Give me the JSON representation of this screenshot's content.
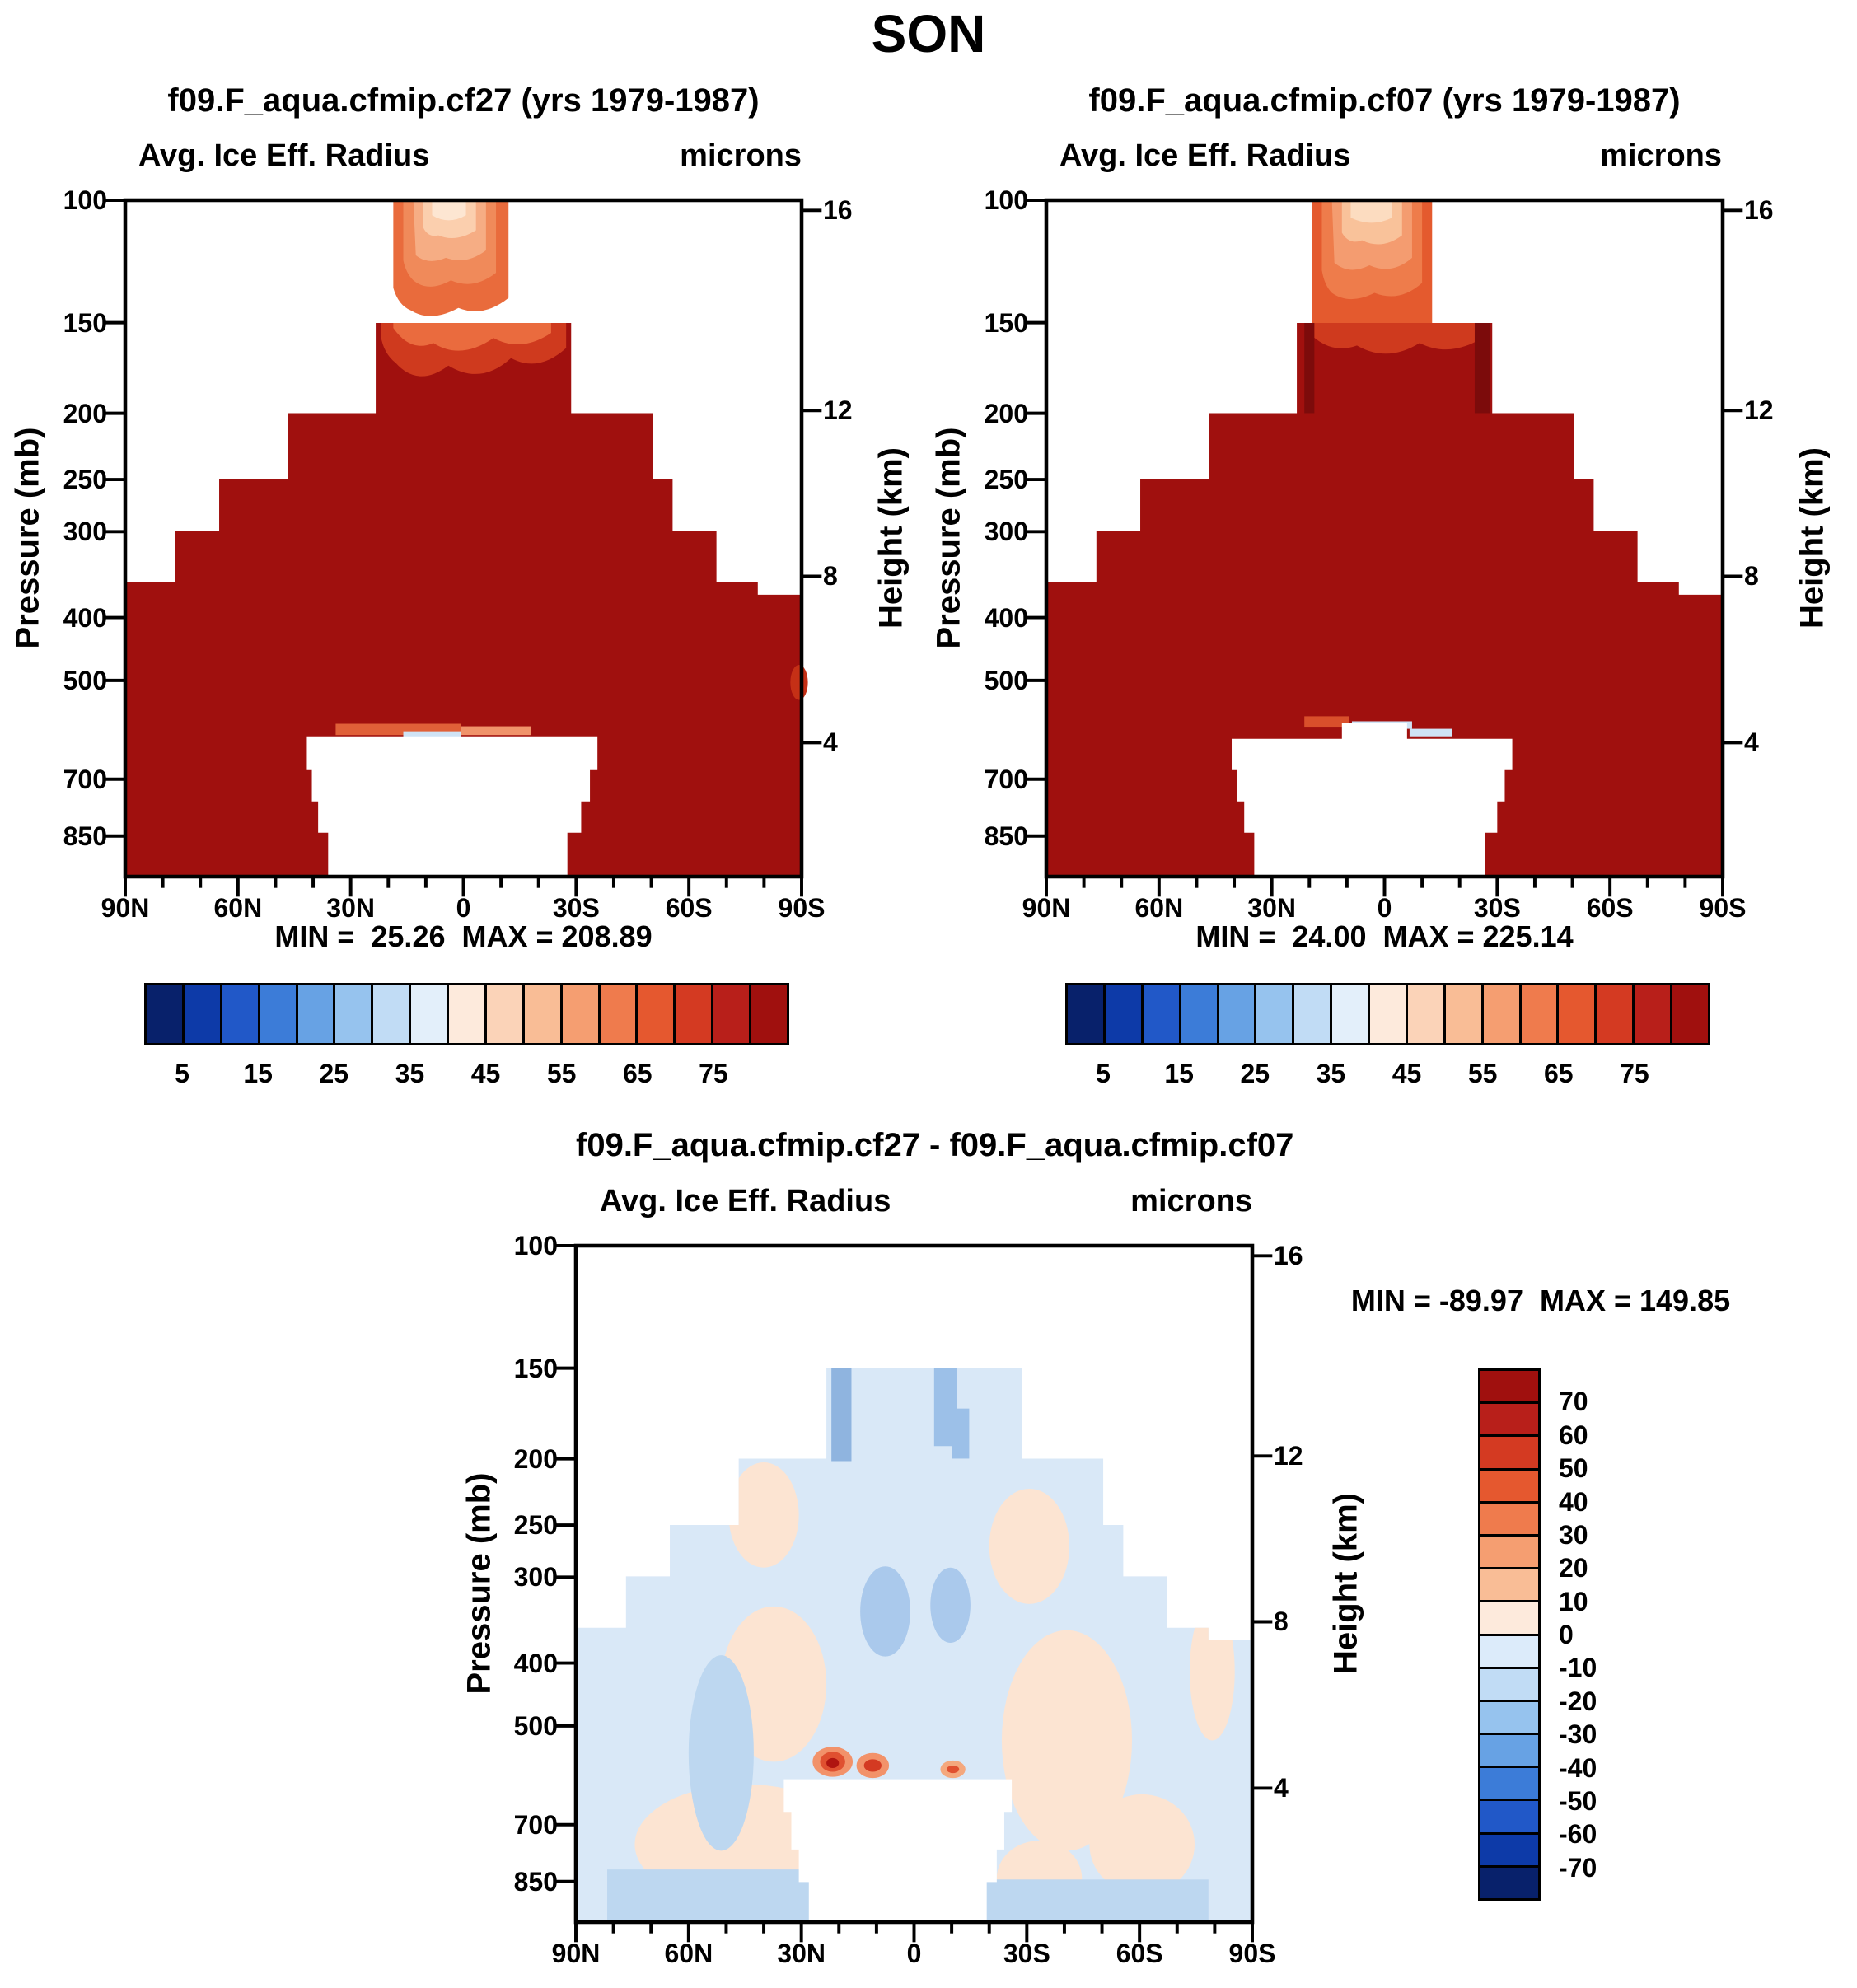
{
  "title": "SON",
  "axes": {
    "pressure_label": "Pressure (mb)",
    "height_label": "Height (km)",
    "pressure_ticks": [
      "100",
      "150",
      "200",
      "250",
      "300",
      "400",
      "500",
      "700",
      "850"
    ],
    "height_ticks": [
      "16",
      "12",
      "8",
      "4"
    ],
    "lat_ticks": [
      "90N",
      "60N",
      "30N",
      "0",
      "30S",
      "60S",
      "90S"
    ]
  },
  "panels": {
    "p1": {
      "title": "f09.F_aqua.cfmip.cf27 (yrs 1979-1987)",
      "subtitle_left": "Avg. Ice Eff. Radius",
      "subtitle_right": "microns",
      "stats": "MIN =  25.26  MAX = 208.89",
      "min": 25.26,
      "max": 208.89
    },
    "p2": {
      "title": "f09.F_aqua.cfmip.cf07 (yrs 1979-1987)",
      "subtitle_left": "Avg. Ice Eff. Radius",
      "subtitle_right": "microns",
      "stats": "MIN =  24.00  MAX = 225.14",
      "min": 24.0,
      "max": 225.14
    },
    "diff": {
      "title": "f09.F_aqua.cfmip.cf27 - f09.F_aqua.cfmip.cf07",
      "subtitle_left": "Avg. Ice Eff. Radius",
      "subtitle_right": "microns",
      "stats": "MIN = -89.97  MAX = 149.85",
      "min": -89.97,
      "max": 149.85
    }
  },
  "colorbar_main": {
    "labels": [
      "5",
      "15",
      "25",
      "35",
      "45",
      "55",
      "65",
      "75"
    ],
    "colors": [
      "#08216b",
      "#0d3aa8",
      "#2158c8",
      "#3c7cd8",
      "#67a2e4",
      "#96c3ee",
      "#c1dcf5",
      "#e3effa",
      "#fdeadc",
      "#fbd3b8",
      "#f9bd96",
      "#f59e71",
      "#ef7b4d",
      "#e5582f",
      "#d43a22",
      "#b81f1a",
      "#a0100e"
    ]
  },
  "colorbar_diff": {
    "labels": [
      "70",
      "60",
      "50",
      "40",
      "30",
      "20",
      "10",
      "0",
      "-10",
      "-20",
      "-30",
      "-40",
      "-50",
      "-60",
      "-70"
    ],
    "colors": [
      "#a0100e",
      "#b81f1a",
      "#d43a22",
      "#e5582f",
      "#ef7b4d",
      "#f59e71",
      "#f9bd96",
      "#fdeadc",
      "#dcebfa",
      "#c1dcf5",
      "#96c3ee",
      "#67a2e4",
      "#3c7cd8",
      "#2158c8",
      "#0d3aa8",
      "#08216b"
    ]
  },
  "chart_data": [
    {
      "type": "contour",
      "panel": "top-left",
      "season": "SON",
      "title": "f09.F_aqua.cfmip.cf27 (yrs 1979-1987)",
      "variable": "Avg. Ice Eff. Radius",
      "units": "microns",
      "x_axis": {
        "label": "latitude",
        "ticks": [
          "90N",
          "60N",
          "30N",
          "0",
          "30S",
          "60S",
          "90S"
        ]
      },
      "y_axis_left": {
        "label": "Pressure (mb)",
        "ticks": [
          100,
          150,
          200,
          250,
          300,
          400,
          500,
          700,
          850
        ],
        "scale": "log"
      },
      "y_axis_right": {
        "label": "Height (km)",
        "ticks": [
          16,
          12,
          8,
          4
        ]
      },
      "min": 25.26,
      "max": 208.89,
      "contour_levels": [
        5,
        10,
        15,
        20,
        25,
        30,
        35,
        40,
        45,
        50,
        55,
        60,
        65,
        70,
        75,
        80
      ],
      "legend_position": "horizontal colorbar below plot",
      "field_description": "Radii exceed 80 microns (darkest red) over nearly the whole cloudy region from ~870 mb up to ~200 mb; the upper boundary descends poleward in latitude steps (150 mb over 30N-30S, 200 mb to ~45 deg, 250-300 mb to ~60 deg, ~350 mb at the poles). In the equatorial plume above 150 mb values decrease upward to ~25-45 microns near 100 mb (pale orange core). A white no-data dome occupies the tropical lower troposphere below ~600 mb between roughly 25N and 25S, capped by a thin band of 45-65 micron values."
    },
    {
      "type": "contour",
      "panel": "top-right",
      "season": "SON",
      "title": "f09.F_aqua.cfmip.cf07 (yrs 1979-1987)",
      "variable": "Avg. Ice Eff. Radius",
      "units": "microns",
      "x_axis": {
        "label": "latitude",
        "ticks": [
          "90N",
          "60N",
          "30N",
          "0",
          "30S",
          "60S",
          "90S"
        ]
      },
      "y_axis_left": {
        "label": "Pressure (mb)",
        "ticks": [
          100,
          150,
          200,
          250,
          300,
          400,
          500,
          700,
          850
        ],
        "scale": "log"
      },
      "y_axis_right": {
        "label": "Height (km)",
        "ticks": [
          16,
          12,
          8,
          4
        ]
      },
      "min": 24.0,
      "max": 225.14,
      "contour_levels": [
        5,
        10,
        15,
        20,
        25,
        30,
        35,
        40,
        45,
        50,
        55,
        60,
        65,
        70,
        75,
        80
      ],
      "legend_position": "horizontal colorbar below plot",
      "field_description": "Same structure as cf27 but the tropical upper-level plume (100-150 mb) is wider and deeper orange (larger radii, ~45-70 microns), the 150-200 mb band is almost entirely >80 microns with dark streaks at its edges, and the tropical no-data dome has a small upward notch at its center near 550 mb."
    },
    {
      "type": "contour",
      "panel": "bottom-difference",
      "season": "SON",
      "title": "f09.F_aqua.cfmip.cf27 - f09.F_aqua.cfmip.cf07",
      "variable": "Avg. Ice Eff. Radius",
      "units": "microns",
      "x_axis": {
        "label": "latitude",
        "ticks": [
          "90N",
          "60N",
          "30N",
          "0",
          "30S",
          "60S",
          "90S"
        ]
      },
      "y_axis_left": {
        "label": "Pressure (mb)",
        "ticks": [
          100,
          150,
          200,
          250,
          300,
          400,
          500,
          700,
          850
        ],
        "scale": "log"
      },
      "y_axis_right": {
        "label": "Height (km)",
        "ticks": [
          16,
          12,
          8,
          4
        ]
      },
      "min": -89.97,
      "max": 149.85,
      "contour_levels": [
        -70,
        -60,
        -50,
        -40,
        -30,
        -20,
        -10,
        0,
        10,
        20,
        30,
        40,
        50,
        60,
        70
      ],
      "legend_position": "vertical colorbar right of plot",
      "field_description": "Differences are mostly small: weak negative (0 to -10, light blue) over most of the cloudy region with slightly stronger negatives (-10 to -20) near 300 mb at the equator, in narrow streaks at 150-250 mb near 30N, and along the bottom boundary; weak positive (0 to +10, pale orange) patches along the subtropical flanks and near the surface at mid-latitudes; localized strong positives (up to >70 microns, red bullseyes) just above the tropical no-data dome near 550-600 mb."
    }
  ]
}
